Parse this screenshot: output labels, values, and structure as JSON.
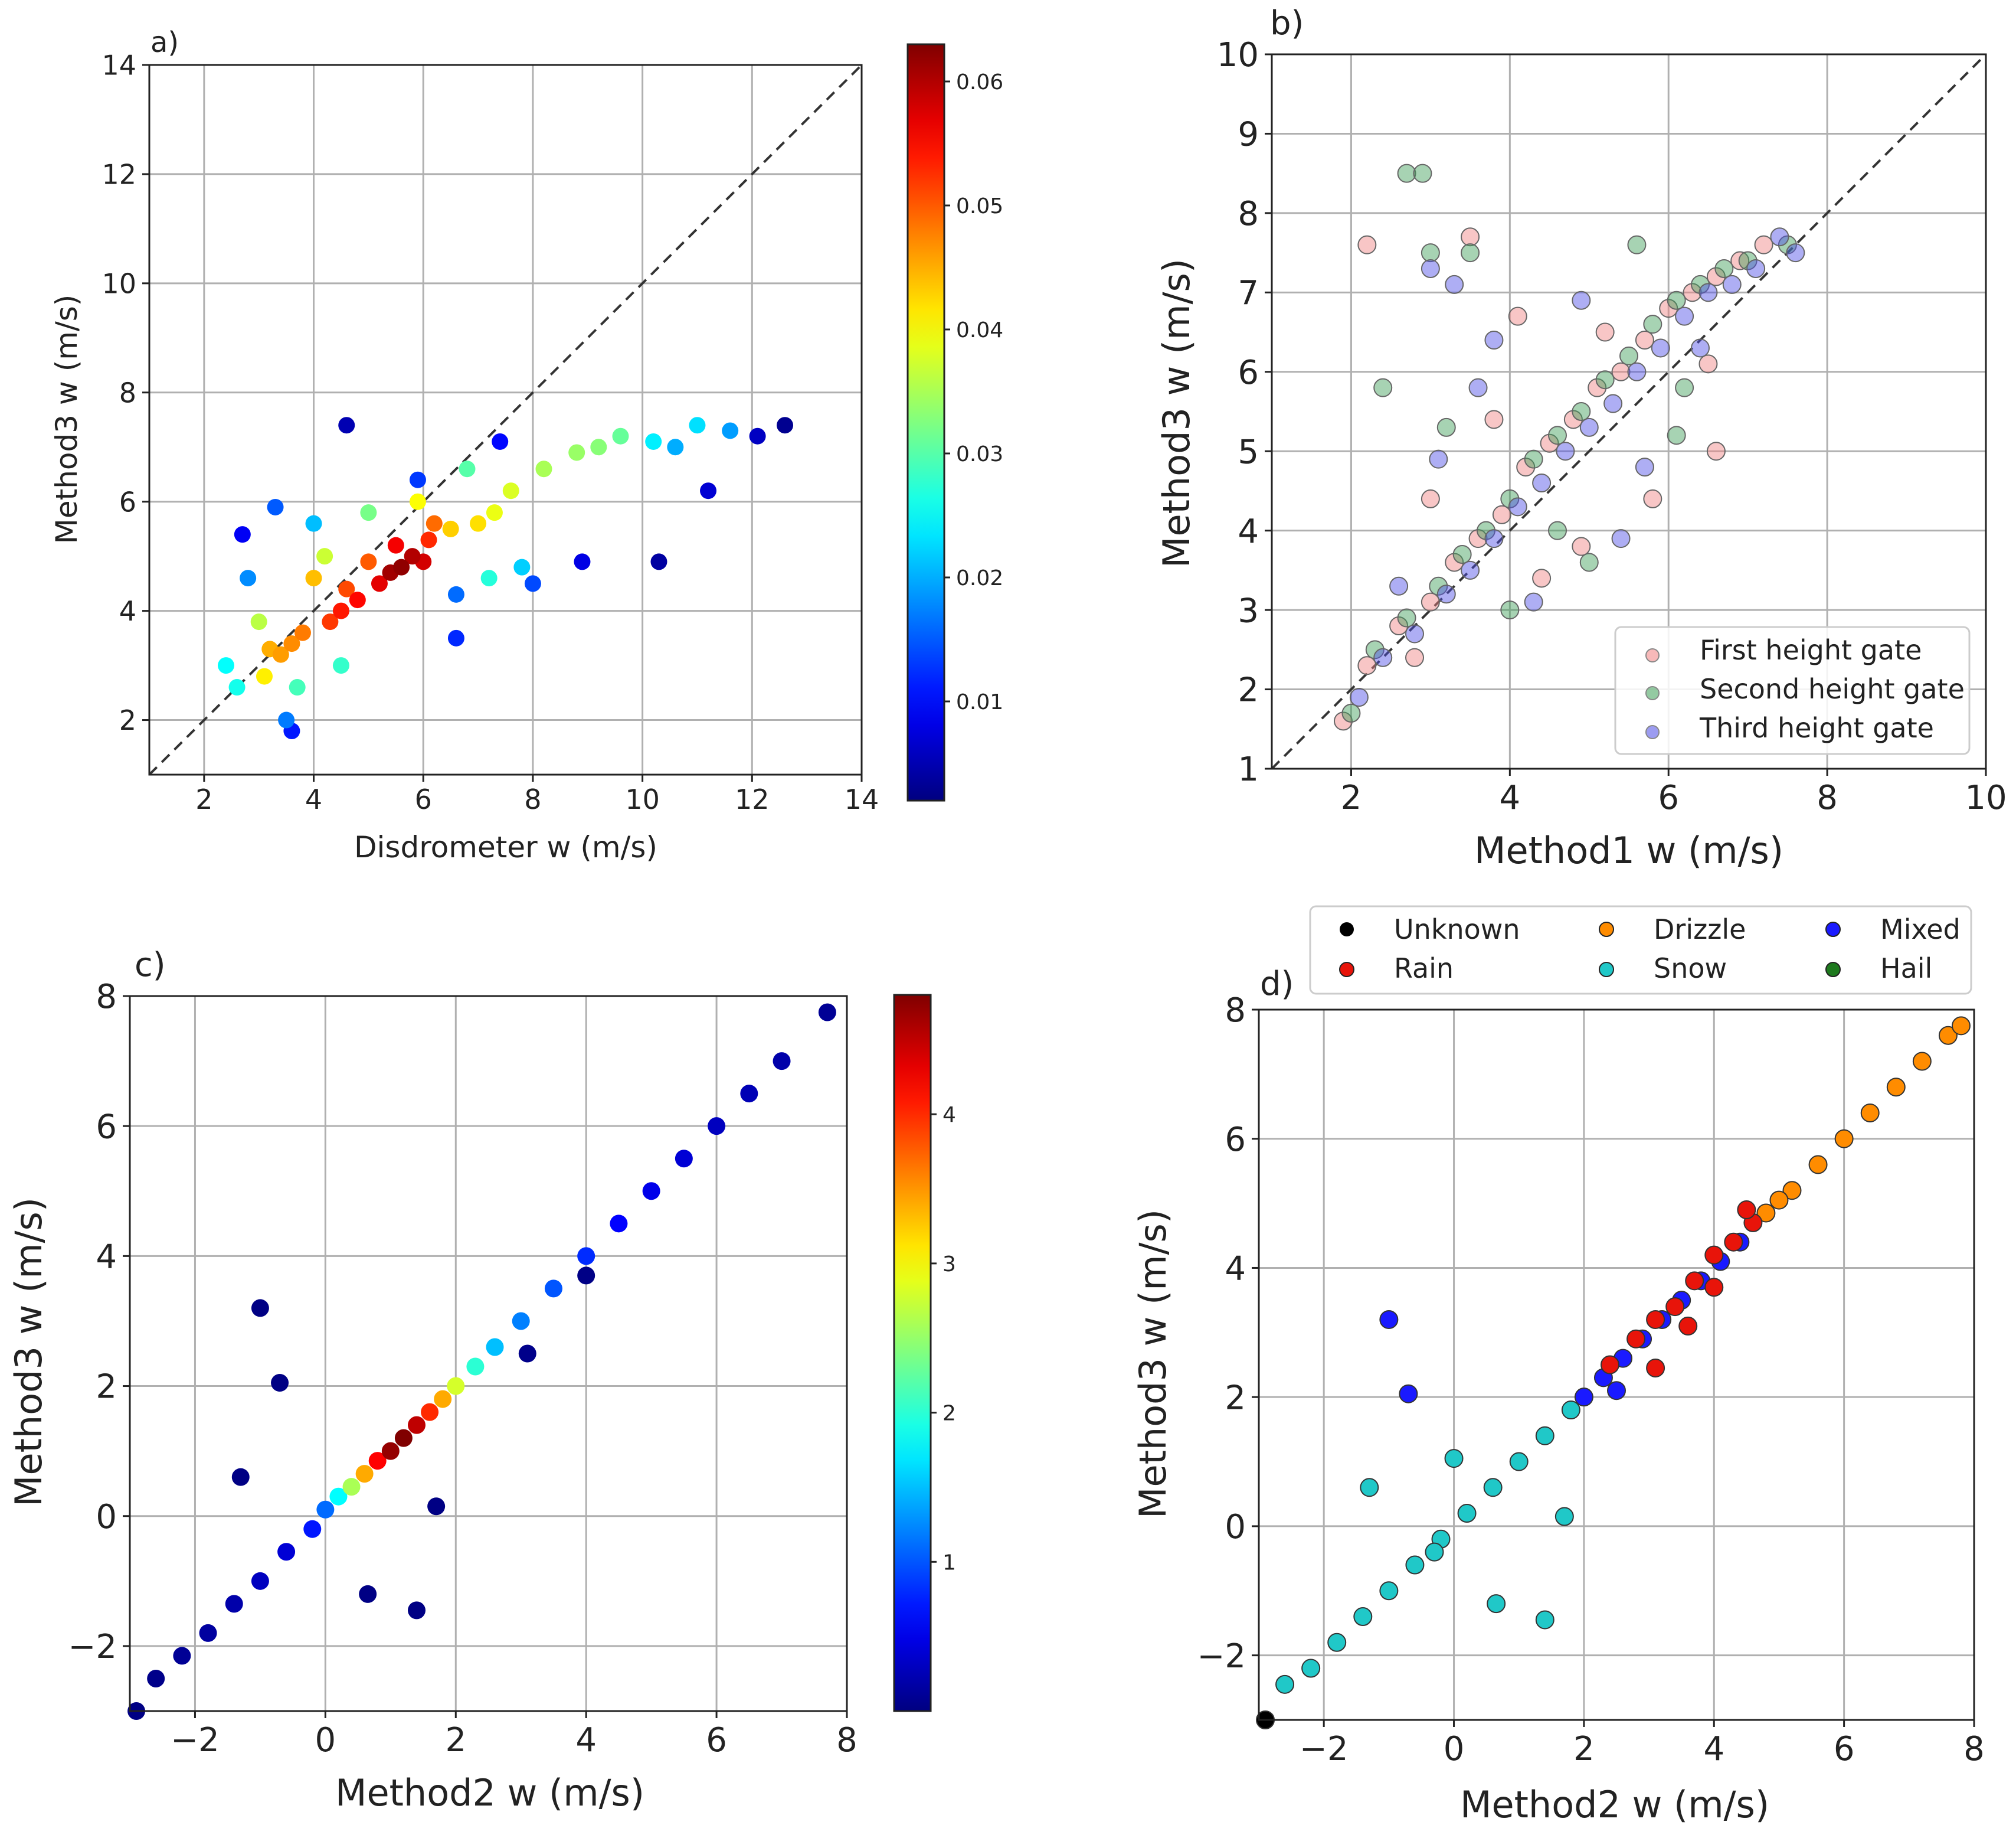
{
  "figure": {
    "background": "#ffffff"
  },
  "chart_data": [
    {
      "id": "a",
      "type": "scatter",
      "panel_label": "a)",
      "xlabel": "Disdrometer w (m/s)",
      "ylabel": "Method3 w (m/s)",
      "xlim": [
        1,
        14
      ],
      "ylim": [
        1,
        14
      ],
      "xticks": [
        2,
        4,
        6,
        8,
        10,
        12,
        14
      ],
      "yticks": [
        2,
        4,
        6,
        8,
        10,
        12,
        14
      ],
      "grid": true,
      "one_to_one_line": true,
      "colormap": "jet",
      "colorbar": {
        "range": [
          0.002,
          0.063
        ],
        "ticks": [
          "0.01",
          "0.02",
          "0.03",
          "0.04",
          "0.05",
          "0.06"
        ],
        "tick_values": [
          0.01,
          0.02,
          0.03,
          0.04,
          0.05,
          0.06
        ]
      },
      "points": [
        [
          5.6,
          4.8,
          0.062
        ],
        [
          5.4,
          4.7,
          0.061
        ],
        [
          5.8,
          5.0,
          0.06
        ],
        [
          6.0,
          4.9,
          0.058
        ],
        [
          5.2,
          4.5,
          0.057
        ],
        [
          5.5,
          5.2,
          0.056
        ],
        [
          4.8,
          4.2,
          0.055
        ],
        [
          4.5,
          4.0,
          0.054
        ],
        [
          6.1,
          5.3,
          0.053
        ],
        [
          4.3,
          3.8,
          0.052
        ],
        [
          4.6,
          4.4,
          0.051
        ],
        [
          5.0,
          4.9,
          0.05
        ],
        [
          6.2,
          5.6,
          0.049
        ],
        [
          3.8,
          3.6,
          0.048
        ],
        [
          3.6,
          3.4,
          0.047
        ],
        [
          3.4,
          3.2,
          0.046
        ],
        [
          3.2,
          3.3,
          0.045
        ],
        [
          4.0,
          4.6,
          0.044
        ],
        [
          6.5,
          5.5,
          0.043
        ],
        [
          7.0,
          5.6,
          0.042
        ],
        [
          3.1,
          2.8,
          0.041
        ],
        [
          5.9,
          6.0,
          0.04
        ],
        [
          7.3,
          5.8,
          0.039
        ],
        [
          7.6,
          6.2,
          0.038
        ],
        [
          4.2,
          5.0,
          0.037
        ],
        [
          3.0,
          3.8,
          0.036
        ],
        [
          8.2,
          6.6,
          0.035
        ],
        [
          8.8,
          6.9,
          0.034
        ],
        [
          9.2,
          7.0,
          0.033
        ],
        [
          5.0,
          5.8,
          0.032
        ],
        [
          9.6,
          7.2,
          0.031
        ],
        [
          6.8,
          6.6,
          0.03
        ],
        [
          3.7,
          2.6,
          0.029
        ],
        [
          4.5,
          3.0,
          0.028
        ],
        [
          7.2,
          4.6,
          0.027
        ],
        [
          2.6,
          2.6,
          0.026
        ],
        [
          2.4,
          3.0,
          0.025
        ],
        [
          10.2,
          7.1,
          0.024
        ],
        [
          11.0,
          7.4,
          0.023
        ],
        [
          7.8,
          4.8,
          0.022
        ],
        [
          4.0,
          5.6,
          0.021
        ],
        [
          10.6,
          7.0,
          0.02
        ],
        [
          11.6,
          7.3,
          0.019
        ],
        [
          2.8,
          4.6,
          0.018
        ],
        [
          3.5,
          2.0,
          0.017
        ],
        [
          6.6,
          4.3,
          0.016
        ],
        [
          3.3,
          5.9,
          0.015
        ],
        [
          8.0,
          4.5,
          0.014
        ],
        [
          5.9,
          6.4,
          0.013
        ],
        [
          6.6,
          3.5,
          0.012
        ],
        [
          3.6,
          1.8,
          0.011
        ],
        [
          7.4,
          7.1,
          0.01
        ],
        [
          2.7,
          5.4,
          0.009
        ],
        [
          8.9,
          4.9,
          0.008
        ],
        [
          11.2,
          6.2,
          0.007
        ],
        [
          12.1,
          7.2,
          0.006
        ],
        [
          4.6,
          7.4,
          0.005
        ],
        [
          10.3,
          4.9,
          0.004
        ],
        [
          12.6,
          7.4,
          0.003
        ]
      ]
    },
    {
      "id": "b",
      "type": "scatter",
      "panel_label": "b)",
      "xlabel": "Method1 w (m/s)",
      "ylabel": "Method3 w (m/s)",
      "xlim": [
        1,
        10
      ],
      "ylim": [
        1,
        10
      ],
      "xticks": [
        2,
        4,
        6,
        8,
        10
      ],
      "yticks": [
        1,
        2,
        3,
        4,
        5,
        6,
        7,
        8,
        9,
        10
      ],
      "grid": true,
      "one_to_one_line": true,
      "legend": {
        "placement": "lower-right"
      },
      "series": [
        {
          "name": "First height gate",
          "color": "#f08080",
          "points": [
            [
              1.9,
              1.6
            ],
            [
              2.2,
              2.3
            ],
            [
              2.6,
              2.8
            ],
            [
              3.0,
              3.1
            ],
            [
              3.3,
              3.6
            ],
            [
              3.6,
              3.9
            ],
            [
              3.9,
              4.2
            ],
            [
              4.2,
              4.8
            ],
            [
              4.5,
              5.1
            ],
            [
              4.8,
              5.4
            ],
            [
              5.1,
              5.8
            ],
            [
              5.4,
              6.0
            ],
            [
              5.7,
              6.4
            ],
            [
              6.0,
              6.8
            ],
            [
              6.3,
              7.0
            ],
            [
              6.6,
              7.2
            ],
            [
              6.9,
              7.4
            ],
            [
              7.2,
              7.6
            ],
            [
              2.2,
              7.6
            ],
            [
              3.5,
              7.7
            ],
            [
              4.1,
              6.7
            ],
            [
              5.2,
              6.5
            ],
            [
              6.5,
              6.1
            ],
            [
              3.0,
              4.4
            ],
            [
              4.9,
              3.8
            ],
            [
              5.8,
              4.4
            ],
            [
              6.6,
              5.0
            ],
            [
              2.8,
              2.4
            ],
            [
              4.4,
              3.4
            ],
            [
              3.8,
              5.4
            ]
          ]
        },
        {
          "name": "Second height gate",
          "color": "#3c9e56",
          "points": [
            [
              2.0,
              1.7
            ],
            [
              2.3,
              2.5
            ],
            [
              2.7,
              2.9
            ],
            [
              3.1,
              3.3
            ],
            [
              3.4,
              3.7
            ],
            [
              3.7,
              4.0
            ],
            [
              4.0,
              4.4
            ],
            [
              4.3,
              4.9
            ],
            [
              4.6,
              5.2
            ],
            [
              4.9,
              5.5
            ],
            [
              5.2,
              5.9
            ],
            [
              5.5,
              6.2
            ],
            [
              5.8,
              6.6
            ],
            [
              6.1,
              6.9
            ],
            [
              6.4,
              7.1
            ],
            [
              6.7,
              7.3
            ],
            [
              7.0,
              7.4
            ],
            [
              7.5,
              7.6
            ],
            [
              2.7,
              8.5
            ],
            [
              2.9,
              8.5
            ],
            [
              3.0,
              7.5
            ],
            [
              3.5,
              7.5
            ],
            [
              2.4,
              5.8
            ],
            [
              5.6,
              7.6
            ],
            [
              4.6,
              4.0
            ],
            [
              6.2,
              5.8
            ],
            [
              3.2,
              5.3
            ],
            [
              5.0,
              3.6
            ],
            [
              4.0,
              3.0
            ],
            [
              6.1,
              5.2
            ]
          ]
        },
        {
          "name": "Third height gate",
          "color": "#4b4be6",
          "points": [
            [
              2.1,
              1.9
            ],
            [
              2.4,
              2.4
            ],
            [
              2.8,
              2.7
            ],
            [
              3.2,
              3.2
            ],
            [
              3.5,
              3.5
            ],
            [
              3.8,
              3.9
            ],
            [
              4.1,
              4.3
            ],
            [
              4.4,
              4.6
            ],
            [
              4.7,
              5.0
            ],
            [
              5.0,
              5.3
            ],
            [
              5.3,
              5.6
            ],
            [
              5.6,
              6.0
            ],
            [
              5.9,
              6.3
            ],
            [
              6.2,
              6.7
            ],
            [
              6.5,
              7.0
            ],
            [
              6.8,
              7.1
            ],
            [
              7.1,
              7.3
            ],
            [
              7.4,
              7.7
            ],
            [
              3.0,
              7.3
            ],
            [
              3.3,
              7.1
            ],
            [
              3.8,
              6.4
            ],
            [
              3.1,
              4.9
            ],
            [
              4.3,
              3.1
            ],
            [
              4.9,
              6.9
            ],
            [
              5.7,
              4.8
            ],
            [
              6.4,
              6.3
            ],
            [
              2.6,
              3.3
            ],
            [
              3.6,
              5.8
            ],
            [
              5.4,
              3.9
            ],
            [
              7.6,
              7.5
            ]
          ]
        }
      ]
    },
    {
      "id": "c",
      "type": "scatter",
      "panel_label": "c)",
      "xlabel": "Method2 w (m/s)",
      "ylabel": "Method3 w (m/s)",
      "xlim": [
        -3,
        8
      ],
      "ylim": [
        -3,
        8
      ],
      "xticks": [
        -2,
        0,
        2,
        4,
        6,
        8
      ],
      "yticks": [
        -2,
        0,
        2,
        4,
        6,
        8
      ],
      "grid": true,
      "colormap": "jet",
      "colorbar": {
        "range": [
          0.0,
          4.8
        ],
        "ticks": [
          "1",
          "2",
          "3",
          "4"
        ],
        "tick_values": [
          1,
          2,
          3,
          4
        ]
      },
      "points": [
        [
          -2.6,
          -2.5,
          0.05
        ],
        [
          -2.2,
          -2.15,
          0.1
        ],
        [
          -1.8,
          -1.8,
          0.15
        ],
        [
          -1.4,
          -1.35,
          0.2
        ],
        [
          -1.0,
          -1.0,
          0.3
        ],
        [
          -0.6,
          -0.55,
          0.4
        ],
        [
          -0.2,
          -0.2,
          0.7
        ],
        [
          0.0,
          0.1,
          1.1
        ],
        [
          0.2,
          0.3,
          1.8
        ],
        [
          0.4,
          0.45,
          2.6
        ],
        [
          0.6,
          0.65,
          3.4
        ],
        [
          0.8,
          0.85,
          4.2
        ],
        [
          1.0,
          1.0,
          4.7
        ],
        [
          1.2,
          1.2,
          4.8
        ],
        [
          1.4,
          1.4,
          4.5
        ],
        [
          1.6,
          1.6,
          4.0
        ],
        [
          1.8,
          1.8,
          3.4
        ],
        [
          2.0,
          2.0,
          2.8
        ],
        [
          2.3,
          2.3,
          2.0
        ],
        [
          2.6,
          2.6,
          1.5
        ],
        [
          3.0,
          3.0,
          1.2
        ],
        [
          3.5,
          3.5,
          1.0
        ],
        [
          4.0,
          4.0,
          0.8
        ],
        [
          4.5,
          4.5,
          0.6
        ],
        [
          5.0,
          5.0,
          0.5
        ],
        [
          5.5,
          5.5,
          0.4
        ],
        [
          6.0,
          6.0,
          0.3
        ],
        [
          6.5,
          6.5,
          0.25
        ],
        [
          7.0,
          7.0,
          0.2
        ],
        [
          7.7,
          7.75,
          0.1
        ],
        [
          -1.0,
          3.2,
          0.02
        ],
        [
          -0.7,
          2.05,
          0.02
        ],
        [
          -1.3,
          0.6,
          0.02
        ],
        [
          0.65,
          -1.2,
          0.02
        ],
        [
          1.4,
          -1.45,
          0.02
        ],
        [
          1.7,
          0.15,
          0.02
        ],
        [
          4.0,
          3.7,
          0.03
        ],
        [
          3.1,
          2.5,
          0.05
        ],
        [
          -2.9,
          -3.0,
          0.02
        ]
      ]
    },
    {
      "id": "d",
      "type": "scatter",
      "panel_label": "d)",
      "xlabel": "Method2 w (m/s)",
      "ylabel": "Method3 w (m/s)",
      "xlim": [
        -3,
        8
      ],
      "ylim": [
        -3,
        8
      ],
      "xticks": [
        -2,
        0,
        2,
        4,
        6,
        8
      ],
      "yticks": [
        -2,
        0,
        2,
        4,
        6,
        8
      ],
      "grid": true,
      "legend": {
        "placement": "top-outside"
      },
      "series": [
        {
          "name": "Unknown",
          "color": "#000000",
          "points": [
            [
              -2.9,
              -3.0
            ]
          ]
        },
        {
          "name": "Drizzle",
          "color": "#ff8c00",
          "points": [
            [
              4.8,
              4.85
            ],
            [
              5.2,
              5.2
            ],
            [
              5.6,
              5.6
            ],
            [
              6.0,
              6.0
            ],
            [
              6.4,
              6.4
            ],
            [
              6.8,
              6.8
            ],
            [
              7.2,
              7.2
            ],
            [
              7.6,
              7.6
            ],
            [
              7.8,
              7.75
            ],
            [
              5.0,
              5.05
            ]
          ]
        },
        {
          "name": "Mixed",
          "color": "#1a1aff",
          "points": [
            [
              2.0,
              2.0
            ],
            [
              2.3,
              2.3
            ],
            [
              2.6,
              2.6
            ],
            [
              2.9,
              2.9
            ],
            [
              3.2,
              3.2
            ],
            [
              3.5,
              3.5
            ],
            [
              3.8,
              3.8
            ],
            [
              4.1,
              4.1
            ],
            [
              4.4,
              4.4
            ],
            [
              -1.0,
              3.2
            ],
            [
              -0.7,
              2.05
            ],
            [
              2.5,
              2.1
            ]
          ]
        },
        {
          "name": "Rain",
          "color": "#e8140a",
          "points": [
            [
              2.4,
              2.5
            ],
            [
              2.8,
              2.9
            ],
            [
              3.1,
              3.2
            ],
            [
              3.4,
              3.4
            ],
            [
              3.7,
              3.8
            ],
            [
              4.0,
              4.2
            ],
            [
              4.3,
              4.4
            ],
            [
              4.6,
              4.7
            ],
            [
              4.5,
              4.9
            ],
            [
              3.1,
              2.45
            ],
            [
              4.0,
              3.7
            ],
            [
              3.6,
              3.1
            ]
          ]
        },
        {
          "name": "Snow",
          "color": "#20c8c8",
          "points": [
            [
              -2.6,
              -2.45
            ],
            [
              -2.2,
              -2.2
            ],
            [
              -1.8,
              -1.8
            ],
            [
              -1.4,
              -1.4
            ],
            [
              -1.0,
              -1.0
            ],
            [
              -0.6,
              -0.6
            ],
            [
              -0.2,
              -0.2
            ],
            [
              0.2,
              0.2
            ],
            [
              0.6,
              0.6
            ],
            [
              1.0,
              1.0
            ],
            [
              1.4,
              1.4
            ],
            [
              1.8,
              1.8
            ],
            [
              -1.3,
              0.6
            ],
            [
              0.65,
              -1.2
            ],
            [
              1.4,
              -1.45
            ],
            [
              1.7,
              0.15
            ],
            [
              0.0,
              1.05
            ],
            [
              -0.3,
              -0.4
            ]
          ]
        },
        {
          "name": "Hail",
          "color": "#1e7a1e",
          "points": []
        }
      ]
    }
  ]
}
